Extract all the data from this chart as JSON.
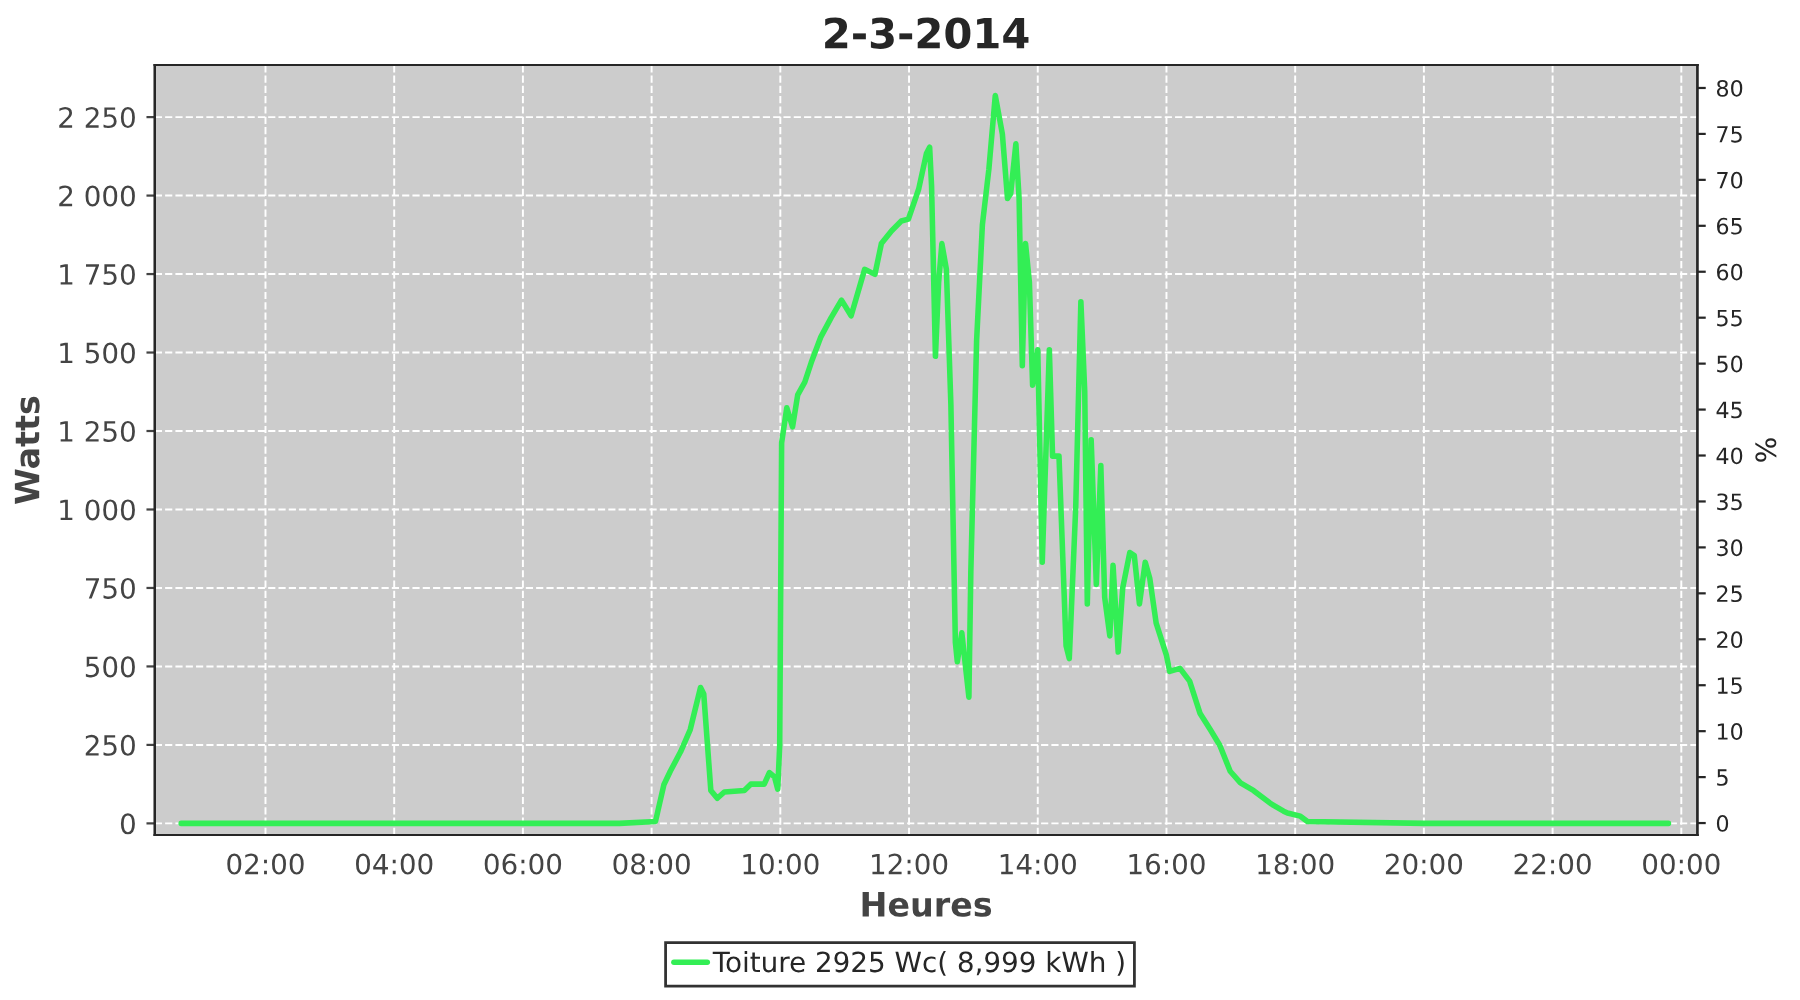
{
  "chart_data": {
    "type": "line",
    "title": "2-3-2014",
    "xlabel": "Heures",
    "ylabel": "Watts",
    "y2label": "%",
    "series": [
      {
        "name": "Toiture 2925 Wc( 8,999 kWh )",
        "color": "#33ee55",
        "x": [
          0.69,
          2.0,
          4.0,
          6.0,
          7.5,
          8.06,
          8.19,
          8.29,
          8.45,
          8.6,
          8.76,
          8.81,
          8.92,
          9.02,
          9.13,
          9.44,
          9.54,
          9.75,
          9.83,
          9.91,
          9.96,
          9.99,
          10.02,
          10.1,
          10.19,
          10.27,
          10.38,
          10.48,
          10.63,
          10.79,
          10.95,
          11.1,
          11.31,
          11.47,
          11.57,
          11.73,
          11.88,
          11.99,
          12.15,
          12.27,
          12.32,
          12.35,
          12.41,
          12.46,
          12.51,
          12.58,
          12.65,
          12.72,
          12.75,
          12.82,
          12.93,
          12.96,
          13.05,
          13.14,
          13.24,
          13.34,
          13.45,
          13.53,
          13.58,
          13.66,
          13.71,
          13.76,
          13.81,
          13.87,
          13.92,
          14.0,
          14.07,
          14.18,
          14.23,
          14.33,
          14.44,
          14.49,
          14.59,
          14.67,
          14.73,
          14.77,
          14.83,
          14.91,
          14.98,
          15.04,
          15.12,
          15.17,
          15.25,
          15.32,
          15.43,
          15.5,
          15.58,
          15.67,
          15.74,
          15.84,
          16.0,
          16.05,
          16.21,
          16.36,
          16.52,
          16.68,
          16.83,
          16.99,
          17.15,
          17.35,
          17.62,
          17.82,
          17.88,
          18.08,
          18.19,
          20.0,
          22.0,
          23.8
        ],
        "values": [
          0,
          0,
          0,
          0,
          0,
          6,
          123,
          166,
          228,
          299,
          433,
          412,
          105,
          80,
          100,
          105,
          125,
          125,
          162,
          148,
          109,
          248,
          1212,
          1324,
          1263,
          1365,
          1406,
          1468,
          1550,
          1611,
          1667,
          1617,
          1765,
          1749,
          1847,
          1888,
          1919,
          1925,
          2021,
          2134,
          2154,
          2031,
          1488,
          1724,
          1847,
          1765,
          1335,
          576,
          515,
          607,
          402,
          801,
          1539,
          1908,
          2083,
          2319,
          2196,
          1991,
          2007,
          2165,
          1991,
          1458,
          1847,
          1724,
          1396,
          1509,
          832,
          1509,
          1170,
          1170,
          566,
          525,
          1007,
          1662,
          1376,
          699,
          1222,
          761,
          1140,
          720,
          597,
          822,
          546,
          750,
          863,
          853,
          699,
          832,
          781,
          638,
          535,
          484,
          494,
          453,
          351,
          299,
          248,
          166,
          129,
          105,
          63,
          39,
          33,
          23,
          6,
          0,
          0,
          0
        ]
      }
    ],
    "xlim": [
      0.28,
      24.25
    ],
    "xticks": [
      {
        "value": 2,
        "label": "02:00"
      },
      {
        "value": 4,
        "label": "04:00"
      },
      {
        "value": 6,
        "label": "06:00"
      },
      {
        "value": 8,
        "label": "08:00"
      },
      {
        "value": 10,
        "label": "10:00"
      },
      {
        "value": 12,
        "label": "12:00"
      },
      {
        "value": 14,
        "label": "14:00"
      },
      {
        "value": 16,
        "label": "16:00"
      },
      {
        "value": 18,
        "label": "18:00"
      },
      {
        "value": 20,
        "label": "20:00"
      },
      {
        "value": 22,
        "label": "22:00"
      },
      {
        "value": 24,
        "label": "00:00"
      }
    ],
    "ylim": [
      -37,
      2416
    ],
    "yticks": [
      0,
      250,
      500,
      750,
      {
        "value": 1000,
        "label": "1 000"
      },
      {
        "value": 1250,
        "label": "1 250"
      },
      {
        "value": 1500,
        "label": "1 500"
      },
      {
        "value": 1750,
        "label": "1 750"
      },
      {
        "value": 2000,
        "label": "2 000"
      },
      {
        "value": 2250,
        "label": "2 250"
      }
    ],
    "y2lim": [
      -1.3,
      82.5
    ],
    "y2ticks": [
      0,
      5,
      10,
      15,
      20,
      25,
      30,
      35,
      40,
      45,
      50,
      55,
      60,
      65,
      70,
      75,
      80
    ],
    "grid": true,
    "legend": "bottom",
    "marker": "none",
    "line_style": "solid"
  }
}
